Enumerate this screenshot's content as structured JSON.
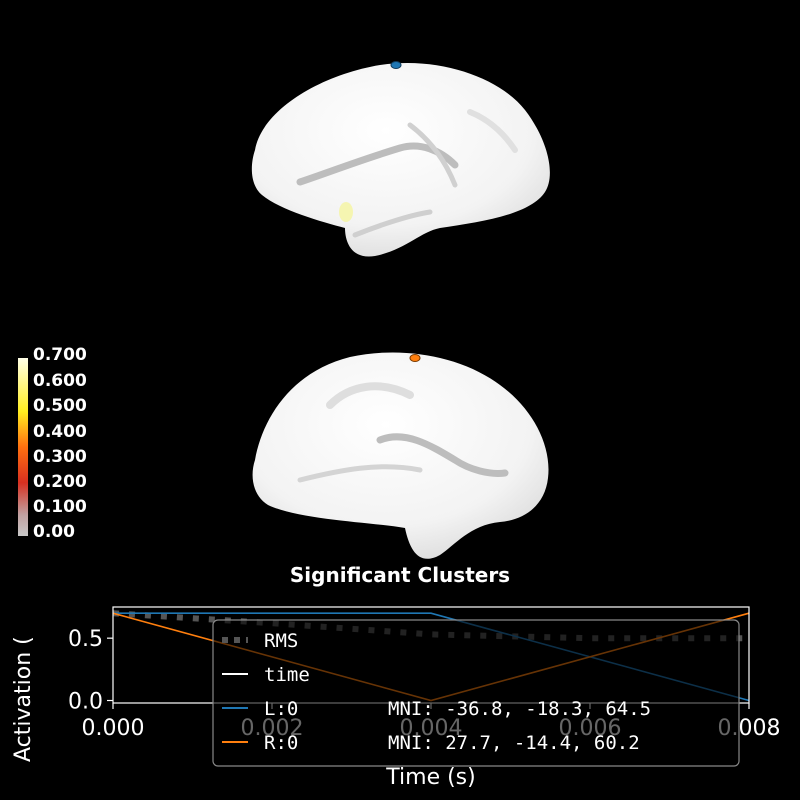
{
  "title": "Significant Clusters",
  "colorbar": {
    "ticks": [
      "0.700",
      "0.600",
      "0.500",
      "0.400",
      "0.300",
      "0.200",
      "0.100",
      "0.00"
    ]
  },
  "chart_data": {
    "type": "line",
    "xlabel": "Time (s)",
    "ylabel": "Activation (",
    "xlim": [
      0,
      0.008
    ],
    "ylim": [
      -0.02,
      0.75
    ],
    "xticks": [
      "0.000",
      "0.002",
      "0.004",
      "0.006",
      "0.008"
    ],
    "yticks": [
      "0.0",
      "0.5"
    ],
    "series": [
      {
        "name": "RMS",
        "style": "dotted",
        "color": "#555555",
        "x": [
          0,
          0.002,
          0.004,
          0.006,
          0.008
        ],
        "y": [
          0.7,
          0.62,
          0.53,
          0.5,
          0.5
        ]
      },
      {
        "name": "time",
        "style": "solid",
        "color": "#ffffff",
        "x": [],
        "y": []
      },
      {
        "name": "L:0",
        "style": "solid",
        "color": "#1f77b4",
        "x": [
          0,
          0.004,
          0.008
        ],
        "y": [
          0.7,
          0.7,
          0.0
        ]
      },
      {
        "name": "R:0",
        "style": "solid",
        "color": "#ff7f0e",
        "x": [
          0,
          0.004,
          0.008
        ],
        "y": [
          0.7,
          0.0,
          0.7
        ]
      }
    ],
    "legend": {
      "placement": "lower-center",
      "entries": [
        {
          "label": "RMS",
          "mni": ""
        },
        {
          "label": "time",
          "mni": ""
        },
        {
          "label": "L:0",
          "mni": "MNI: -36.8, -18.3,  64.5"
        },
        {
          "label": "R:0",
          "mni": "MNI:  27.7, -14.4,  60.2"
        }
      ]
    }
  },
  "colors": {
    "background": "#000000",
    "brain": "#f2f2f2",
    "sulcus": "#c8c8c8",
    "left_marker": "#1f77b4",
    "right_marker": "#ff7f0e"
  }
}
